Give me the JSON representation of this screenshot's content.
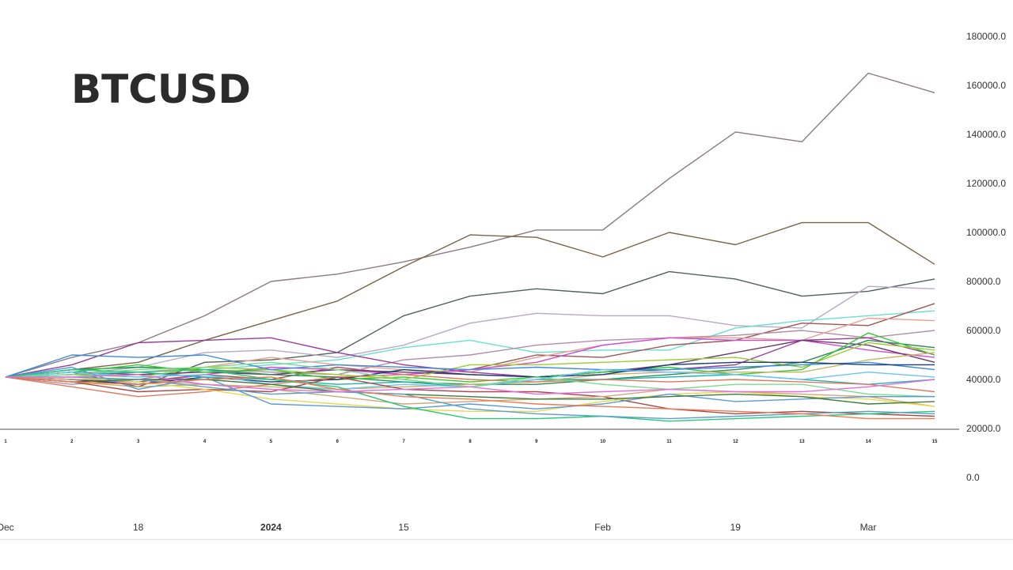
{
  "title": "BTCUSD",
  "chart_data": {
    "type": "line",
    "title": "BTCUSD",
    "xlabel": "",
    "ylabel": "",
    "ylim": [
      0,
      180000
    ],
    "y_ticks": [
      "180000.0",
      "160000.0",
      "140000.0",
      "120000.0",
      "100000.0",
      "80000.0",
      "60000.0",
      "40000.0",
      "20000.0",
      "0.0"
    ],
    "y_tick_values": [
      180000,
      160000,
      140000,
      120000,
      100000,
      80000,
      60000,
      40000,
      20000,
      0
    ],
    "step_labels": [
      "1",
      "2",
      "3",
      "4",
      "5",
      "6",
      "7",
      "8",
      "9",
      "10",
      "11",
      "12",
      "13",
      "14",
      "15"
    ],
    "x": [
      1,
      2,
      3,
      4,
      5,
      6,
      7,
      8,
      9,
      10,
      11,
      12,
      13,
      14,
      15
    ],
    "date_ticks": [
      {
        "label": "Dec",
        "at": 1.0,
        "bold": false
      },
      {
        "label": "18",
        "at": 3.0,
        "bold": false
      },
      {
        "label": "2024",
        "at": 5.0,
        "bold": true
      },
      {
        "label": "15",
        "at": 7.0,
        "bold": false
      },
      {
        "label": "Feb",
        "at": 10.0,
        "bold": false
      },
      {
        "label": "19",
        "at": 12.0,
        "bold": false
      },
      {
        "label": "Mar",
        "at": 14.0,
        "bold": false
      }
    ],
    "grid": false,
    "legend": "none",
    "series": [
      {
        "color": "#8b7b80",
        "values": [
          41000,
          49000,
          55000,
          66000,
          80000,
          83000,
          88000,
          94000,
          101000,
          101000,
          122000,
          141000,
          137000,
          165000,
          157000
        ]
      },
      {
        "color": "#7a6448",
        "values": [
          41000,
          44000,
          47000,
          56000,
          64000,
          72000,
          86000,
          99000,
          98000,
          90000,
          100000,
          95000,
          104000,
          104000,
          87000
        ]
      },
      {
        "color": "#4f6358",
        "values": [
          41000,
          43000,
          37000,
          47000,
          48000,
          51000,
          66000,
          74000,
          77000,
          75000,
          84000,
          81000,
          74000,
          76000,
          81000
        ]
      },
      {
        "color": "#b7a9c8",
        "values": [
          41000,
          42000,
          45000,
          51000,
          52000,
          49000,
          54000,
          63000,
          67000,
          66000,
          66000,
          62000,
          61000,
          78000,
          77000
        ]
      },
      {
        "color": "#66e0d4",
        "values": [
          41000,
          44000,
          45000,
          44000,
          46000,
          48000,
          53000,
          56000,
          51000,
          52000,
          52000,
          61000,
          64000,
          66000,
          68000
        ]
      },
      {
        "color": "#a05555",
        "values": [
          41000,
          40000,
          39000,
          42000,
          40000,
          45000,
          42000,
          44000,
          50000,
          49000,
          54000,
          56000,
          63000,
          62000,
          71000
        ]
      },
      {
        "color": "#b38da8",
        "values": [
          41000,
          38000,
          40000,
          44000,
          43000,
          42000,
          48000,
          50000,
          54000,
          56000,
          57000,
          58000,
          60000,
          57000,
          60000
        ]
      },
      {
        "color": "#e8a090",
        "values": [
          41000,
          41000,
          43000,
          45000,
          49000,
          46000,
          44000,
          43000,
          49000,
          54000,
          57000,
          57000,
          56000,
          65000,
          64000
        ]
      },
      {
        "color": "#9a3c9a",
        "values": [
          41000,
          46000,
          55000,
          56000,
          57000,
          51000,
          46000,
          43000,
          41000,
          43000,
          44000,
          46000,
          56000,
          57000,
          50000
        ]
      },
      {
        "color": "#d44ad4",
        "values": [
          41000,
          40000,
          38000,
          42000,
          45000,
          44000,
          42000,
          44000,
          47000,
          54000,
          57000,
          56000,
          56000,
          52000,
          49000
        ]
      },
      {
        "color": "#6a3a6a",
        "values": [
          41000,
          43000,
          42000,
          43000,
          42000,
          44000,
          43000,
          42000,
          41000,
          43000,
          46000,
          51000,
          56000,
          54000,
          47000
        ]
      },
      {
        "color": "#2e8b57",
        "values": [
          41000,
          44000,
          45000,
          44000,
          42000,
          41000,
          39000,
          38000,
          38000,
          40000,
          42000,
          44000,
          47000,
          56000,
          53000
        ]
      },
      {
        "color": "#32cd32",
        "values": [
          41000,
          43000,
          46000,
          43000,
          44000,
          40000,
          41000,
          39000,
          41000,
          43000,
          45000,
          42000,
          44000,
          59000,
          50000
        ]
      },
      {
        "color": "#9acd32",
        "values": [
          41000,
          42000,
          41000,
          45000,
          44000,
          42000,
          40000,
          46000,
          46000,
          47000,
          48000,
          49000,
          45000,
          55000,
          52000
        ]
      },
      {
        "color": "#c8b464",
        "values": [
          41000,
          39000,
          37000,
          38000,
          37000,
          36000,
          37000,
          38000,
          39000,
          42000,
          43000,
          43000,
          43000,
          48000,
          51000
        ]
      },
      {
        "color": "#3c8cdc",
        "values": [
          41000,
          50000,
          49000,
          50000,
          44000,
          46000,
          45000,
          44000,
          45000,
          44000,
          44000,
          45000,
          46000,
          47000,
          44000
        ]
      },
      {
        "color": "#1f3c78",
        "values": [
          41000,
          40000,
          38000,
          41000,
          39000,
          40000,
          44000,
          42000,
          41000,
          42000,
          46000,
          47000,
          47000,
          46000,
          46000
        ]
      },
      {
        "color": "#20b2aa",
        "values": [
          41000,
          42000,
          43000,
          41000,
          40000,
          38000,
          39000,
          37000,
          40000,
          40000,
          41000,
          42000,
          40000,
          38000,
          40000
        ]
      },
      {
        "color": "#e07a5f",
        "values": [
          41000,
          37000,
          33000,
          35000,
          38000,
          41000,
          42000,
          40000,
          39000,
          40000,
          39000,
          40000,
          39000,
          38000,
          35000
        ]
      },
      {
        "color": "#6cc4f0",
        "values": [
          41000,
          43000,
          41000,
          42000,
          38000,
          36000,
          38000,
          37000,
          40000,
          44000,
          43000,
          42000,
          40000,
          43000,
          41000
        ]
      },
      {
        "color": "#7bdc8c",
        "values": [
          41000,
          42000,
          44000,
          45000,
          47000,
          44000,
          40000,
          37000,
          41000,
          38000,
          36000,
          38000,
          38000,
          34000,
          33000
        ]
      },
      {
        "color": "#a84a4a",
        "values": [
          41000,
          39000,
          35000,
          36000,
          35000,
          41000,
          36000,
          35000,
          35000,
          33000,
          28000,
          26000,
          27000,
          26000,
          25000
        ]
      },
      {
        "color": "#d2a878",
        "values": [
          41000,
          40000,
          40000,
          38000,
          36000,
          33000,
          30000,
          31000,
          32000,
          33000,
          36000,
          35000,
          34000,
          33000,
          29000
        ]
      },
      {
        "color": "#e8d850",
        "values": [
          41000,
          41000,
          39000,
          36000,
          32000,
          30000,
          28000,
          27000,
          27000,
          31000,
          34000,
          35000,
          33000,
          32000,
          29000
        ]
      },
      {
        "color": "#5a9ad8",
        "values": [
          41000,
          45000,
          36000,
          41000,
          30000,
          29000,
          28000,
          30000,
          28000,
          30000,
          34000,
          31000,
          32000,
          33000,
          33000
        ]
      },
      {
        "color": "#3e7c3e",
        "values": [
          41000,
          39000,
          40000,
          40000,
          38000,
          35000,
          34000,
          33000,
          32000,
          32000,
          33000,
          34000,
          33000,
          30000,
          31000
        ]
      },
      {
        "color": "#28c878",
        "values": [
          41000,
          44000,
          43000,
          44000,
          40000,
          37000,
          29000,
          24000,
          24000,
          25000,
          23000,
          24000,
          25000,
          26000,
          27000
        ]
      },
      {
        "color": "#5aa0c8",
        "values": [
          41000,
          41000,
          40000,
          37000,
          34000,
          35000,
          34000,
          28000,
          26000,
          25000,
          24000,
          25000,
          26000,
          27000,
          26000
        ]
      },
      {
        "color": "#f07850",
        "values": [
          41000,
          39000,
          38000,
          40000,
          41000,
          36000,
          33000,
          32000,
          30000,
          29000,
          28000,
          27000,
          26000,
          24000,
          24000
        ]
      },
      {
        "color": "#e070e0",
        "values": [
          41000,
          41000,
          42000,
          38000,
          36000,
          35000,
          36000,
          37000,
          34000,
          35000,
          36000,
          35000,
          35000,
          37000,
          40000
        ]
      }
    ]
  }
}
